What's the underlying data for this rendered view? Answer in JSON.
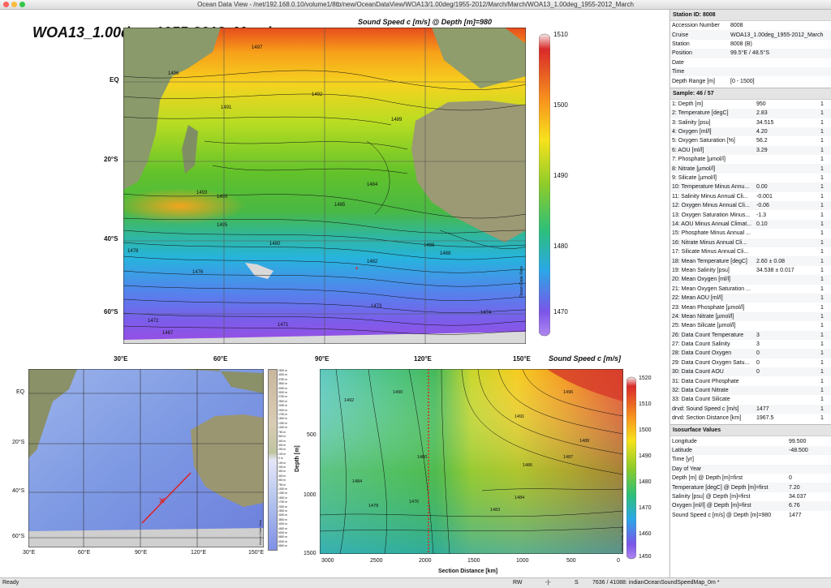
{
  "window": {
    "title": "Ocean Data View - /net/192.168.0.10/volume1/8tb/new/OceanDataView/WOA13/1.00deg/1955-2012/March/March/WOA13_1.00deg_1955-2012_March"
  },
  "map": {
    "title": "WOA13_1.00deg_1955-2012_March",
    "variable_title": "Sound Speed c [m/s] @ Depth [m]=980",
    "lat_labels": [
      "EQ",
      "20°S",
      "40°S",
      "60°S"
    ],
    "lon_labels": [
      "30°E",
      "60°E",
      "90°E",
      "120°E",
      "150°E"
    ],
    "colorbar_ticks": [
      "1510",
      "1500",
      "1490",
      "1480",
      "1470"
    ],
    "watermark": "Ocean Data View",
    "contour_labels": [
      "1496",
      "1497",
      "1492",
      "1491",
      "1490",
      "1489",
      "1488",
      "1484",
      "1493",
      "1495",
      "1478",
      "1476",
      "1474",
      "1473",
      "1472",
      "1471",
      "1467",
      "1480",
      "1486",
      "1485",
      "1482"
    ]
  },
  "station_map": {
    "lat_labels": [
      "EQ",
      "20°S",
      "40°S",
      "60°S"
    ],
    "lon_labels": [
      "30°E",
      "60°E",
      "90°E",
      "120°E",
      "150°E"
    ],
    "depth_scale": [
      "2500 m",
      "4000 m",
      "3750 m",
      "3500 m",
      "3250 m",
      "3000 m",
      "2750 m",
      "2500 m",
      "2250 m",
      "2000 m",
      "1750 m",
      "1500 m",
      "1250 m",
      "1000 m",
      "750 m",
      "500 m",
      "400 m",
      "300 m",
      "200 m",
      "100 m",
      "0 m",
      "100 m",
      "200 m",
      "300 m",
      "400 m",
      "500 m",
      "750 m",
      "1000 m",
      "1250 m",
      "1500 m",
      "1750 m",
      "2000 m",
      "2500 m",
      "3000 m",
      "3500 m",
      "4000 m",
      "4500 m",
      "5000 m",
      "5500 m",
      "6000 m",
      "6500 m"
    ],
    "watermark": "Ocean Data View"
  },
  "section": {
    "variable_title": "Sound Speed c [m/s]",
    "ylabel": "Depth [m]",
    "xlabel": "Section Distance [km]",
    "y_ticks": [
      "500",
      "1000",
      "1500"
    ],
    "x_ticks": [
      "3000",
      "2500",
      "2000",
      "1500",
      "1000",
      "500",
      "0"
    ],
    "colorbar_ticks": [
      "1520",
      "1510",
      "1500",
      "1490",
      "1480",
      "1470",
      "1460",
      "1450"
    ],
    "watermark": "Ocean Data View",
    "contour_labels": [
      "1492",
      "1490",
      "1484",
      "1478",
      "1476",
      "1480",
      "1483",
      "1484",
      "1486",
      "1487",
      "1488",
      "1491",
      "1496"
    ]
  },
  "station": {
    "header": "Station ID: 8008",
    "rows": [
      [
        "Accession Number",
        "8008"
      ],
      [
        "Cruise",
        "WOA13_1.00deg_1955-2012_March"
      ],
      [
        "Station",
        "8008 (B)"
      ],
      [
        "Position",
        "99.5°E / 48.5°S"
      ],
      [
        "Date",
        ""
      ],
      [
        "Time",
        ""
      ],
      [
        "Depth Range [m]",
        "[0 - 1500]"
      ]
    ]
  },
  "sample": {
    "header": "Sample: 46 / 57",
    "rows": [
      [
        "1: Depth [m]",
        "950",
        "1"
      ],
      [
        "2: Temperature [degC]",
        "2.83",
        "1"
      ],
      [
        "3: Salinity [psu]",
        "34.515",
        "1"
      ],
      [
        "4: Oxygen [ml/l]",
        "4.20",
        "1"
      ],
      [
        "5: Oxygen Saturation [%]",
        "56.2",
        "1"
      ],
      [
        "6: AOU [ml/l]",
        "3.29",
        "1"
      ],
      [
        "7: Phosphate [µmol/l]",
        "",
        "1"
      ],
      [
        "8: Nitrate [µmol/l]",
        "",
        "1"
      ],
      [
        "9: Silicate [µmol/l]",
        "",
        "1"
      ],
      [
        "10: Temperature Minus Annu...",
        "0.00",
        "1"
      ],
      [
        "11: Salinity Minus Annual Cli...",
        "-0.001",
        "1"
      ],
      [
        "12: Oxygen Minus Annual Cli...",
        "-0.06",
        "1"
      ],
      [
        "13: Oxygen Saturation Minus...",
        "-1.3",
        "1"
      ],
      [
        "14: AOU Minus Annual Climat...",
        "0.10",
        "1"
      ],
      [
        "15: Phosphate Minus Annual ...",
        "",
        "1"
      ],
      [
        "16: Nitrate Minus Annual Cli...",
        "",
        "1"
      ],
      [
        "17: Silicate Minus Annual Cli...",
        "",
        "1"
      ],
      [
        "18: Mean Temperature [degC]",
        "2.60 ± 0.08",
        "1"
      ],
      [
        "19: Mean Salinity [psu]",
        "34.538 ± 0.017",
        "1"
      ],
      [
        "20: Mean Oxygen [ml/l]",
        "",
        "1"
      ],
      [
        "21: Mean Oxygen Saturation ...",
        "",
        "1"
      ],
      [
        "22: Mean AOU [ml/l]",
        "",
        "1"
      ],
      [
        "23: Mean Phosphate [µmol/l]",
        "",
        "1"
      ],
      [
        "24: Mean Nitrate [µmol/l]",
        "",
        "1"
      ],
      [
        "25: Mean Silicate [µmol/l]",
        "",
        "1"
      ],
      [
        "26: Data Count Temperature",
        "3",
        "1"
      ],
      [
        "27: Data Count Salinity",
        "3",
        "1"
      ],
      [
        "28: Data Count Oxygen",
        "0",
        "1"
      ],
      [
        "29: Data Count Oxygen Satu...",
        "0",
        "1"
      ],
      [
        "30: Data Count AOU",
        "0",
        "1"
      ],
      [
        "31: Data Count Phosphate",
        "",
        "1"
      ],
      [
        "32: Data Count Nitrate",
        "",
        "1"
      ],
      [
        "33: Data Count Silicate",
        "",
        "1"
      ],
      [
        "drvd: Sound Speed c [m/s]",
        "1477",
        "1"
      ],
      [
        "drvd: Section Distance [km]",
        "1967.5",
        "1"
      ]
    ]
  },
  "isosurface": {
    "header": "Isosurface Values",
    "rows": [
      [
        "Longitude",
        "99.500"
      ],
      [
        "Latitude",
        "-48.500"
      ],
      [
        "Time [yr]",
        ""
      ],
      [
        "Day of Year",
        ""
      ],
      [
        "Depth [m] @ Depth [m]=first",
        "0"
      ],
      [
        "Temperature [degC] @ Depth [m]=first",
        "7.20"
      ],
      [
        "Salinity [psu] @ Depth [m]=first",
        "34.037"
      ],
      [
        "Oxygen [ml/l] @ Depth [m]=first",
        "6.76"
      ],
      [
        "Sound Speed c [m/s] @ Depth [m]=980",
        "1477"
      ]
    ]
  },
  "status": {
    "ready": "Ready",
    "mode": "RW",
    "sep": "-|-",
    "s": "S",
    "count": "7636 / 41088: indianOceanSoundSpeedMap_0m *"
  }
}
